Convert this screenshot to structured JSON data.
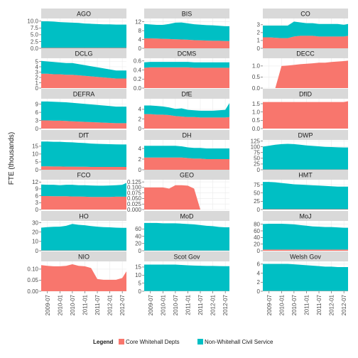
{
  "chart_data": {
    "type": "area",
    "stacked": true,
    "ylabel": "FTE (thousands)",
    "x_ticks": [
      "2009-07",
      "2010-01",
      "2010-07",
      "2011-01",
      "2011-07",
      "2012-01",
      "2012-07"
    ],
    "x_dates": [
      "2009-04",
      "2009-07",
      "2009-10",
      "2010-01",
      "2010-04",
      "2010-07",
      "2010-10",
      "2011-01",
      "2011-04",
      "2011-07",
      "2011-10",
      "2012-01",
      "2012-04",
      "2012-07",
      "2012-09"
    ],
    "legend": {
      "title": "Legend",
      "position": "bottom",
      "entries": [
        "Core Whitehall Depts",
        "Non-Whitehall Civil Service"
      ]
    },
    "colors": {
      "core": "#F8766D",
      "non": "#00BFC4",
      "panel_bg": "#ffffff",
      "grid": "#ebebeb",
      "strip": "#d9d9d9"
    },
    "panels": [
      {
        "name": "AGO",
        "yticks": [
          0.0,
          2.5,
          5.0,
          7.5,
          10.0
        ],
        "tick_labels": [
          "0.0",
          "2.5",
          "5.0",
          "7.5",
          "10.0"
        ],
        "ymax": 11,
        "core": [
          0.15,
          0.15,
          0.15,
          0.15,
          0.15,
          0.15,
          0.15,
          0.15,
          0.15,
          0.15,
          0.15,
          0.15,
          0.15,
          0.15,
          0.15
        ],
        "non": [
          9.8,
          9.8,
          9.7,
          9.5,
          9.4,
          9.3,
          9.2,
          9.0,
          8.9,
          8.8,
          8.7,
          8.7,
          8.6,
          8.6,
          8.6
        ]
      },
      {
        "name": "BIS",
        "yticks": [
          0,
          4,
          8,
          12
        ],
        "tick_labels": [
          "0",
          "4",
          "8",
          "12"
        ],
        "ymax": 13.5,
        "core": [
          4.5,
          4.5,
          4.4,
          4.3,
          4.2,
          4.1,
          4.0,
          3.9,
          3.7,
          3.6,
          3.5,
          3.4,
          3.4,
          3.3,
          3.3
        ],
        "non": [
          6.5,
          6.3,
          6.2,
          6.3,
          6.8,
          7.5,
          7.7,
          7.4,
          7.2,
          7.1,
          7.0,
          7.0,
          6.8,
          6.7,
          6.7
        ]
      },
      {
        "name": "CO",
        "yticks": [
          0,
          1,
          2,
          3
        ],
        "tick_labels": [
          "0",
          "1",
          "2",
          "3"
        ],
        "ymax": 3.8,
        "core": [
          1.4,
          1.4,
          1.35,
          1.3,
          1.3,
          1.5,
          1.6,
          1.6,
          1.6,
          1.5,
          1.5,
          1.5,
          1.5,
          1.5,
          1.6
        ],
        "non": [
          1.5,
          1.5,
          1.55,
          1.6,
          1.6,
          1.9,
          1.7,
          1.6,
          1.6,
          1.6,
          1.6,
          1.6,
          1.6,
          1.5,
          1.5
        ]
      },
      {
        "name": "DCLG",
        "yticks": [
          0,
          1,
          2,
          3,
          4,
          5
        ],
        "tick_labels": [
          "0",
          "1",
          "2",
          "3",
          "4",
          "5"
        ],
        "ymax": 5.6,
        "core": [
          2.7,
          2.7,
          2.6,
          2.6,
          2.5,
          2.5,
          2.4,
          2.3,
          2.2,
          2.1,
          2.0,
          1.9,
          1.8,
          1.8,
          1.8
        ],
        "non": [
          2.4,
          2.3,
          2.3,
          2.2,
          2.2,
          2.2,
          2.1,
          2.0,
          1.9,
          1.8,
          1.7,
          1.6,
          1.5,
          1.5,
          1.5
        ]
      },
      {
        "name": "DCMS",
        "yticks": [
          0.0,
          0.2,
          0.4,
          0.6
        ],
        "tick_labels": [
          "0.0",
          "0.2",
          "0.4",
          "0.6"
        ],
        "ymax": 0.66,
        "core": [
          0.45,
          0.46,
          0.46,
          0.46,
          0.46,
          0.46,
          0.46,
          0.46,
          0.45,
          0.45,
          0.45,
          0.45,
          0.45,
          0.45,
          0.45
        ],
        "non": [
          0.12,
          0.12,
          0.12,
          0.12,
          0.12,
          0.12,
          0.12,
          0.12,
          0.12,
          0.12,
          0.12,
          0.12,
          0.12,
          0.12,
          0.12
        ]
      },
      {
        "name": "DECC",
        "yticks": [
          0.0,
          0.5,
          1.0
        ],
        "tick_labels": [
          "0.0",
          "0.5",
          "1.0"
        ],
        "ymax": 1.35,
        "core": [
          null,
          null,
          0.0,
          1.0,
          1.02,
          1.05,
          1.08,
          1.1,
          1.12,
          1.15,
          1.15,
          1.18,
          1.2,
          1.22,
          1.24
        ],
        "non": [
          null,
          null,
          0,
          0,
          0,
          0,
          0,
          0,
          0,
          0,
          0,
          0,
          0,
          0,
          0
        ]
      },
      {
        "name": "DEFRA",
        "yticks": [
          0,
          3,
          6,
          9
        ],
        "tick_labels": [
          "0",
          "3",
          "6",
          "9"
        ],
        "ymax": 11,
        "core": [
          3.0,
          3.0,
          2.9,
          2.9,
          2.8,
          2.7,
          2.6,
          2.5,
          2.4,
          2.3,
          2.2,
          2.1,
          2.0,
          2.0,
          2.0
        ],
        "non": [
          7.0,
          7.0,
          7.0,
          6.9,
          6.9,
          6.8,
          6.7,
          6.6,
          6.5,
          6.4,
          6.3,
          6.2,
          6.1,
          6.1,
          6.1
        ]
      },
      {
        "name": "DfE",
        "yticks": [
          0,
          2,
          4
        ],
        "tick_labels": [
          "0",
          "2",
          "4"
        ],
        "ymax": 6.2,
        "core": [
          3.0,
          3.0,
          2.9,
          2.9,
          2.8,
          2.6,
          2.5,
          2.4,
          2.4,
          2.3,
          2.3,
          2.3,
          2.3,
          2.3,
          2.4
        ],
        "non": [
          1.8,
          1.8,
          1.8,
          1.7,
          1.6,
          1.5,
          1.7,
          1.5,
          1.4,
          1.4,
          1.4,
          1.4,
          1.5,
          1.6,
          2.9
        ]
      },
      {
        "name": "DfID",
        "yticks": [
          0.0,
          0.5,
          1.0,
          1.5
        ],
        "tick_labels": [
          "0.0",
          "0.5",
          "1.0",
          "1.5"
        ],
        "ymax": 1.8,
        "core": [
          1.6,
          1.6,
          1.6,
          1.6,
          1.6,
          1.6,
          1.6,
          1.6,
          1.6,
          1.6,
          1.6,
          1.6,
          1.6,
          1.6,
          1.65
        ],
        "non": [
          0,
          0,
          0,
          0,
          0,
          0,
          0,
          0,
          0,
          0,
          0,
          0,
          0,
          0,
          0
        ]
      },
      {
        "name": "DfT",
        "yticks": [
          0,
          5,
          10,
          15
        ],
        "tick_labels": [
          "0",
          "5",
          "10",
          "15"
        ],
        "ymax": 19,
        "core": [
          2.2,
          2.2,
          2.1,
          2.1,
          2.0,
          2.0,
          1.9,
          1.9,
          1.8,
          1.8,
          1.8,
          1.8,
          1.8,
          1.8,
          1.8
        ],
        "non": [
          15.8,
          15.8,
          15.7,
          15.7,
          15.6,
          15.5,
          15.3,
          15.1,
          14.9,
          14.7,
          14.6,
          14.5,
          14.4,
          14.3,
          14.3
        ]
      },
      {
        "name": "DH",
        "yticks": [
          0,
          2,
          4
        ],
        "tick_labels": [
          "0",
          "2",
          "4"
        ],
        "ymax": 5.6,
        "core": [
          2.3,
          2.3,
          2.3,
          2.3,
          2.3,
          2.3,
          2.3,
          2.2,
          2.1,
          2.1,
          2.0,
          2.0,
          2.0,
          2.0,
          2.0
        ],
        "non": [
          2.2,
          2.2,
          2.2,
          2.2,
          2.2,
          2.2,
          2.1,
          2.0,
          2.0,
          2.0,
          2.0,
          2.0,
          2.0,
          2.0,
          2.0
        ]
      },
      {
        "name": "DWP",
        "yticks": [
          0,
          25,
          50,
          75,
          100,
          125
        ],
        "tick_labels": [
          "0",
          "25",
          "50",
          "75",
          "100",
          "125"
        ],
        "ymax": 130,
        "core": [
          1.0,
          1.0,
          1.0,
          1.0,
          1.0,
          1.0,
          1.0,
          1.0,
          1.0,
          1.0,
          1.0,
          1.0,
          1.0,
          1.0,
          1.0
        ],
        "non": [
          100,
          104,
          108,
          111,
          112,
          111,
          108,
          105,
          103,
          101,
          99,
          98,
          97,
          96,
          96
        ]
      },
      {
        "name": "FCO",
        "yticks": [
          0,
          3,
          6,
          9,
          12
        ],
        "tick_labels": [
          "0",
          "3",
          "6",
          "9",
          "12"
        ],
        "ymax": 13,
        "core": [
          5.9,
          5.9,
          5.8,
          5.8,
          5.8,
          5.7,
          5.7,
          5.6,
          5.5,
          5.5,
          5.5,
          5.5,
          5.6,
          5.6,
          5.6
        ],
        "non": [
          5.0,
          4.9,
          5.0,
          4.8,
          5.0,
          5.1,
          4.9,
          5.0,
          5.0,
          4.9,
          4.9,
          5.0,
          5.0,
          5.2,
          6.0
        ]
      },
      {
        "name": "GEO",
        "yticks": [
          0.0,
          0.025,
          0.05,
          0.075,
          0.1,
          0.125
        ],
        "tick_labels": [
          "0.000",
          "0.025",
          "0.050",
          "0.075",
          "0.100",
          "0.125"
        ],
        "ymax": 0.135,
        "core": [
          0.1,
          0.1,
          0.1,
          0.1,
          0.095,
          0.11,
          0.11,
          0.108,
          0.095,
          0.0,
          null,
          null,
          null,
          null,
          null
        ],
        "non": [
          0,
          0,
          0,
          0,
          0,
          0,
          0,
          0,
          0,
          0,
          null,
          null,
          null,
          null,
          null
        ]
      },
      {
        "name": "HMT",
        "yticks": [
          0,
          25,
          50,
          75
        ],
        "tick_labels": [
          "0",
          "25",
          "50",
          "75"
        ],
        "ymax": 90,
        "core": [
          1.2,
          1.2,
          1.2,
          1.2,
          1.2,
          1.2,
          1.2,
          1.2,
          1.2,
          1.2,
          1.2,
          1.2,
          1.2,
          1.2,
          1.2
        ],
        "non": [
          82,
          82,
          81,
          79,
          77,
          75,
          74,
          73,
          72,
          71,
          70,
          69,
          68,
          68,
          68
        ]
      },
      {
        "name": "HO",
        "yticks": [
          0,
          10,
          20,
          30
        ],
        "tick_labels": [
          "0",
          "10",
          "20",
          "30"
        ],
        "ymax": 32,
        "core": [
          0.3,
          0.3,
          0.3,
          0.3,
          0.3,
          0.3,
          0.3,
          0.3,
          0.3,
          0.3,
          0.3,
          0.3,
          0.3,
          0.3,
          0.3
        ],
        "non": [
          24.5,
          25.0,
          25.4,
          25.5,
          26.5,
          28.5,
          27.5,
          27.0,
          26.2,
          25.5,
          25.0,
          24.8,
          24.5,
          24.3,
          24.3
        ]
      },
      {
        "name": "MoD",
        "yticks": [
          0,
          20,
          40,
          60
        ],
        "tick_labels": [
          "0",
          "20",
          "40",
          "60"
        ],
        "ymax": 82,
        "core": [
          0.5,
          0.5,
          0.5,
          0.5,
          0.5,
          0.5,
          0.5,
          0.5,
          0.5,
          0.5,
          0.5,
          0.5,
          0.5,
          0.5,
          0.5
        ],
        "non": [
          76,
          76,
          76,
          75,
          75,
          75,
          74,
          73,
          72,
          70,
          68,
          67,
          65,
          64,
          64
        ]
      },
      {
        "name": "MoJ",
        "yticks": [
          0,
          20,
          40,
          60,
          80
        ],
        "tick_labels": [
          "0",
          "20",
          "40",
          "60",
          "80"
        ],
        "ymax": 90,
        "core": [
          3.5,
          3.5,
          3.5,
          3.5,
          3.5,
          3.5,
          3.5,
          3.5,
          3.5,
          3.5,
          3.5,
          3.5,
          3.5,
          3.5,
          3.5
        ],
        "non": [
          77,
          78,
          78,
          78,
          77,
          76,
          74,
          72,
          70,
          69,
          68,
          68,
          67,
          66,
          66
        ]
      },
      {
        "name": "NIO",
        "yticks": [
          0.0,
          0.05,
          0.1
        ],
        "tick_labels": [
          "0.00",
          "0.05",
          "0.10"
        ],
        "ymax": 0.135,
        "core": [
          0.118,
          0.115,
          0.113,
          0.113,
          0.115,
          0.122,
          0.115,
          0.113,
          0.105,
          0.055,
          0.052,
          0.052,
          0.052,
          0.06,
          0.09
        ],
        "non": [
          0,
          0,
          0,
          0,
          0,
          0,
          0,
          0,
          0,
          0,
          0,
          0,
          0,
          0,
          0
        ]
      },
      {
        "name": "Scot Gov",
        "yticks": [
          0,
          5,
          10,
          15
        ],
        "tick_labels": [
          "0",
          "5",
          "10",
          "15"
        ],
        "ymax": 18.5,
        "core": [
          0.1,
          0.1,
          0.1,
          0.1,
          0.1,
          0.1,
          0.1,
          0.1,
          0.1,
          0.1,
          0.1,
          0.1,
          0.1,
          0.1,
          0.1
        ],
        "non": [
          16.4,
          16.4,
          16.4,
          16.4,
          16.4,
          16.4,
          16.2,
          16.0,
          15.8,
          15.7,
          15.6,
          15.6,
          15.5,
          15.4,
          15.4
        ]
      },
      {
        "name": "Welsh Gov",
        "yticks": [
          0,
          2,
          4,
          6
        ],
        "tick_labels": [
          "0",
          "2",
          "4",
          "6"
        ],
        "ymax": 6.6,
        "core": [
          0.05,
          0.05,
          0.05,
          0.05,
          0.05,
          0.05,
          0.05,
          0.05,
          0.05,
          0.05,
          0.05,
          0.05,
          0.05,
          0.05,
          0.05
        ],
        "non": [
          6.0,
          6.0,
          6.0,
          6.0,
          6.0,
          5.9,
          5.8,
          5.7,
          5.6,
          5.5,
          5.4,
          5.4,
          5.3,
          5.3,
          5.3
        ]
      }
    ]
  }
}
